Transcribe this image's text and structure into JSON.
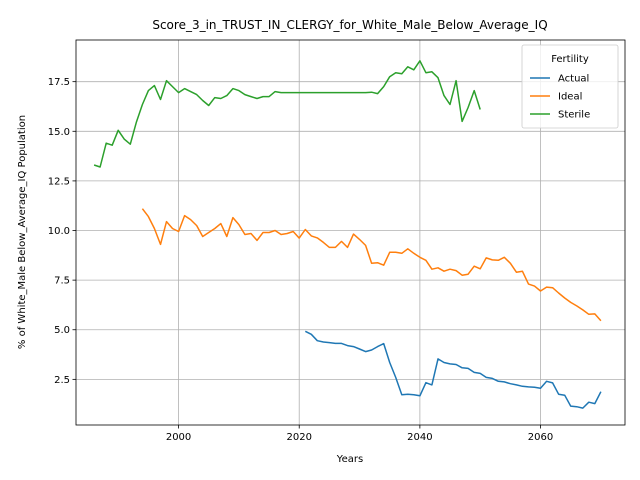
{
  "chart_data": {
    "type": "line",
    "title": "Score_3_in_TRUST_IN_CLERGY_for_White_Male_Below_Average_IQ",
    "xlabel": "Years",
    "ylabel": "% of White_Male Below_Average_IQ Population",
    "xlim": [
      1983,
      2074
    ],
    "ylim": [
      0.2,
      19.6
    ],
    "xticks": [
      2000,
      2020,
      2040,
      2060
    ],
    "yticks": [
      2.5,
      5.0,
      7.5,
      10.0,
      12.5,
      15.0,
      17.5
    ],
    "ytick_labels": [
      "2.5",
      "5.0",
      "7.5",
      "10.0",
      "12.5",
      "15.0",
      "17.5"
    ],
    "grid": true,
    "legend": {
      "title": "Fertility",
      "placement": "top-right"
    },
    "series": [
      {
        "name": "Actual",
        "color": "#1f77b4",
        "x": [
          2021,
          2022,
          2023,
          2024,
          2025,
          2026,
          2027,
          2028,
          2029,
          2030,
          2031,
          2032,
          2033,
          2034,
          2035,
          2036,
          2037,
          2038,
          2039,
          2040,
          2041,
          2042,
          2043,
          2044,
          2045,
          2046,
          2047,
          2048,
          2049,
          2050,
          2051,
          2052,
          2053,
          2054,
          2055,
          2056,
          2057,
          2058,
          2059,
          2060,
          2061,
          2062,
          2063,
          2064,
          2065,
          2066,
          2067,
          2068,
          2069,
          2070
        ],
        "y": [
          4.92,
          4.77,
          4.45,
          4.38,
          4.35,
          4.31,
          4.31,
          4.2,
          4.15,
          4.03,
          3.9,
          3.98,
          4.15,
          4.3,
          3.35,
          2.6,
          1.72,
          1.75,
          1.72,
          1.67,
          2.33,
          2.22,
          3.53,
          3.35,
          3.28,
          3.25,
          3.08,
          3.05,
          2.85,
          2.8,
          2.6,
          2.55,
          2.4,
          2.37,
          2.28,
          2.22,
          2.15,
          2.12,
          2.1,
          2.05,
          2.4,
          2.32,
          1.75,
          1.7,
          1.15,
          1.12,
          1.05,
          1.35,
          1.28,
          1.88
        ]
      },
      {
        "name": "Ideal",
        "color": "#ff7f0e",
        "x": [
          1994,
          1995,
          1996,
          1997,
          1998,
          1999,
          2000,
          2001,
          2002,
          2003,
          2004,
          2005,
          2006,
          2007,
          2008,
          2009,
          2010,
          2011,
          2012,
          2013,
          2014,
          2015,
          2016,
          2017,
          2018,
          2019,
          2020,
          2021,
          2022,
          2023,
          2024,
          2025,
          2026,
          2027,
          2028,
          2029,
          2030,
          2031,
          2032,
          2033,
          2034,
          2035,
          2036,
          2037,
          2038,
          2039,
          2040,
          2041,
          2042,
          2043,
          2044,
          2045,
          2046,
          2047,
          2048,
          2049,
          2050,
          2051,
          2052,
          2053,
          2054,
          2055,
          2056,
          2057,
          2058,
          2059,
          2060,
          2061,
          2062,
          2063,
          2064,
          2065,
          2066,
          2067,
          2068,
          2069,
          2070
        ],
        "y": [
          11.1,
          10.7,
          10.1,
          9.3,
          10.45,
          10.1,
          9.95,
          10.75,
          10.55,
          10.25,
          9.7,
          9.9,
          10.1,
          10.35,
          9.7,
          10.65,
          10.3,
          9.8,
          9.85,
          9.5,
          9.9,
          9.9,
          10.0,
          9.8,
          9.85,
          9.95,
          9.62,
          10.05,
          9.73,
          9.63,
          9.4,
          9.15,
          9.15,
          9.45,
          9.15,
          9.82,
          9.55,
          9.25,
          8.35,
          8.38,
          8.25,
          8.9,
          8.9,
          8.85,
          9.08,
          8.85,
          8.65,
          8.5,
          8.05,
          8.12,
          7.95,
          8.05,
          7.98,
          7.75,
          7.8,
          8.2,
          8.07,
          8.62,
          8.52,
          8.5,
          8.65,
          8.35,
          7.9,
          7.95,
          7.3,
          7.2,
          6.95,
          7.15,
          7.12,
          6.85,
          6.6,
          6.38,
          6.2,
          6.0,
          5.78,
          5.8,
          5.45
        ]
      },
      {
        "name": "Sterile",
        "color": "#2ca02c",
        "x": [
          1986,
          1987,
          1988,
          1989,
          1990,
          1991,
          1992,
          1993,
          1994,
          1995,
          1996,
          1997,
          1998,
          1999,
          2000,
          2001,
          2002,
          2003,
          2004,
          2005,
          2006,
          2007,
          2008,
          2009,
          2010,
          2011,
          2012,
          2013,
          2014,
          2015,
          2016,
          2017,
          2018,
          2019,
          2020,
          2021,
          2022,
          2023,
          2024,
          2025,
          2026,
          2027,
          2028,
          2029,
          2030,
          2031,
          2032,
          2033,
          2034,
          2035,
          2036,
          2037,
          2038,
          2039,
          2040,
          2041,
          2042,
          2043,
          2044,
          2045,
          2046,
          2047,
          2048,
          2049,
          2050
        ],
        "y": [
          13.3,
          13.2,
          14.4,
          14.3,
          15.05,
          14.6,
          14.35,
          15.45,
          16.35,
          17.05,
          17.3,
          16.6,
          17.55,
          17.25,
          16.95,
          17.15,
          17.0,
          16.85,
          16.55,
          16.3,
          16.7,
          16.65,
          16.8,
          17.15,
          17.05,
          16.85,
          16.75,
          16.65,
          16.75,
          16.75,
          17.0,
          16.95,
          16.95,
          16.95,
          16.95,
          16.95,
          16.95,
          16.95,
          16.95,
          16.95,
          16.95,
          16.95,
          16.95,
          16.95,
          16.95,
          16.95,
          16.97,
          16.9,
          17.25,
          17.75,
          17.95,
          17.9,
          18.25,
          18.1,
          18.55,
          17.95,
          18.0,
          17.7,
          16.8,
          16.35,
          17.55,
          15.5,
          16.2,
          17.05,
          16.1
        ]
      }
    ]
  }
}
